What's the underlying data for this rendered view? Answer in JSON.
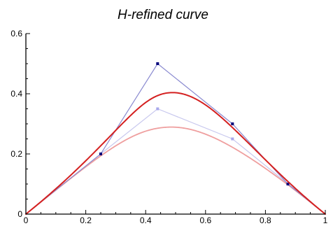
{
  "chart_data": {
    "type": "line",
    "title": "H-refined curve",
    "xlabel": "",
    "ylabel": "",
    "xlim": [
      0,
      1
    ],
    "ylim": [
      0,
      0.6
    ],
    "x_ticks": [
      {
        "value": 0,
        "label": "0"
      },
      {
        "value": 0.2,
        "label": "0.2"
      },
      {
        "value": 0.4,
        "label": "0.4"
      },
      {
        "value": 0.6,
        "label": "0.6"
      },
      {
        "value": 0.8,
        "label": "0.8"
      },
      {
        "value": 1,
        "label": "1"
      }
    ],
    "y_ticks": [
      {
        "value": 0,
        "label": "0"
      },
      {
        "value": 0.2,
        "label": "0.2"
      },
      {
        "value": 0.4,
        "label": "0.4"
      },
      {
        "value": 0.6,
        "label": "0.6"
      }
    ],
    "x_minor_step": 0.05,
    "y_minor_step": 0.05,
    "grid": false,
    "legend": "none",
    "series": [
      {
        "kind": "control-polygon",
        "style": "original",
        "color": "#c8c8ee",
        "marker_color": "#a8a8ec",
        "points": [
          [
            0,
            0
          ],
          [
            0.25,
            0.2
          ],
          [
            0.44,
            0.35
          ],
          [
            0.69,
            0.25
          ],
          [
            1,
            0
          ]
        ]
      },
      {
        "kind": "curve",
        "style": "original",
        "color": "#ef9f9f",
        "degree": 3,
        "knots": [
          0,
          0,
          0,
          0,
          0.5,
          1,
          1,
          1,
          1
        ],
        "control_points": [
          [
            0,
            0
          ],
          [
            0.25,
            0.2
          ],
          [
            0.44,
            0.35
          ],
          [
            0.69,
            0.25
          ],
          [
            1,
            0
          ]
        ]
      },
      {
        "kind": "control-polygon",
        "style": "refined",
        "color": "#8a8ad0",
        "marker_color": "#00007a",
        "points": [
          [
            0,
            0
          ],
          [
            0.25,
            0.2
          ],
          [
            0.44,
            0.5
          ],
          [
            0.69,
            0.3
          ],
          [
            0.875,
            0.1
          ],
          [
            1,
            0
          ]
        ]
      },
      {
        "kind": "curve",
        "style": "refined",
        "color": "#d42020",
        "degree": 3,
        "knots": [
          0,
          0,
          0,
          0,
          0.33,
          0.67,
          1,
          1,
          1,
          1
        ],
        "control_points": [
          [
            0,
            0
          ],
          [
            0.25,
            0.2
          ],
          [
            0.44,
            0.5
          ],
          [
            0.69,
            0.3
          ],
          [
            0.875,
            0.1
          ],
          [
            1,
            0
          ]
        ]
      }
    ]
  }
}
